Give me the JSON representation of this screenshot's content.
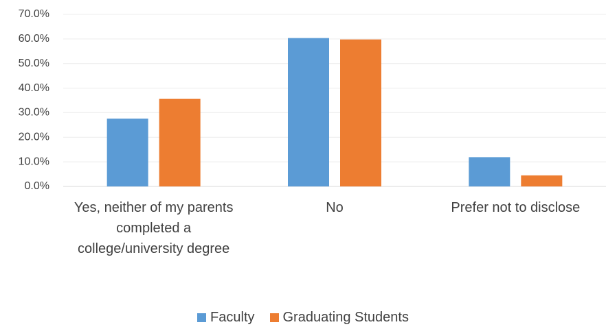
{
  "chart_data": {
    "type": "bar",
    "categories": [
      "Yes, neither of my parents completed a college/university degree",
      "No",
      "Prefer not to disclose"
    ],
    "series": [
      {
        "name": "Faculty",
        "color": "#5b9bd5",
        "values": [
          27.6,
          60.4,
          11.9
        ]
      },
      {
        "name": "Graduating Students",
        "color": "#ed7d31",
        "values": [
          35.7,
          59.8,
          4.5
        ]
      }
    ],
    "ylim": [
      0,
      70
    ],
    "yticks": [
      {
        "value": 0,
        "label": "0.0%"
      },
      {
        "value": 10,
        "label": "10.0%"
      },
      {
        "value": 20,
        "label": "20.0%"
      },
      {
        "value": 30,
        "label": "30.0%"
      },
      {
        "value": 40,
        "label": "40.0%"
      },
      {
        "value": 50,
        "label": "50.0%"
      },
      {
        "value": 60,
        "label": "60.0%"
      },
      {
        "value": 70,
        "label": "70.0%"
      }
    ],
    "grid": true
  }
}
